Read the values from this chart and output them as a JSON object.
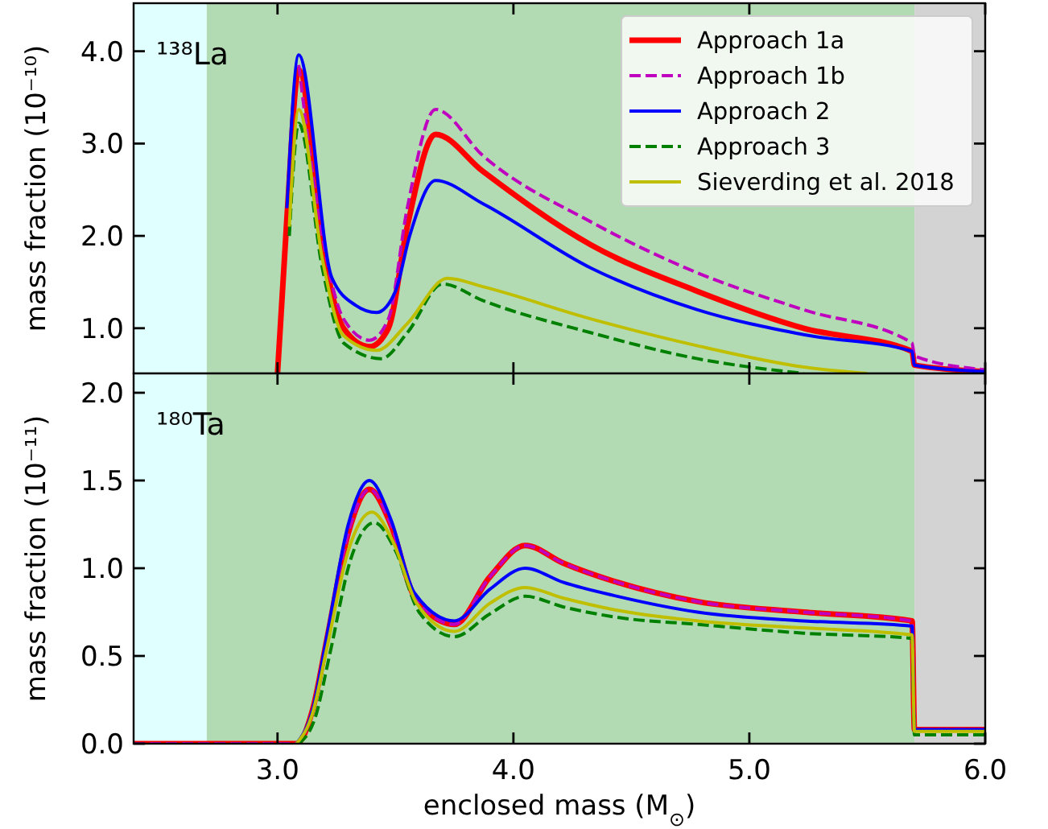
{
  "chart_data": [
    {
      "type": "line",
      "ylabel": "mass fraction (10⁻¹⁰)",
      "annotations": [
        "¹³⁸La"
      ],
      "xlim": [
        2.39,
        6.0
      ],
      "xticks": [
        {
          "value": 3.0,
          "label": null
        },
        {
          "value": 4.0,
          "label": null
        },
        {
          "value": 5.0,
          "label": null
        },
        {
          "value": 6.0,
          "label": null
        }
      ],
      "ylim": [
        0.51,
        4.52
      ],
      "yticks": [
        {
          "value": 1,
          "label": "1.0"
        },
        {
          "value": 2,
          "label": "2.0"
        },
        {
          "value": 3,
          "label": "3.0"
        },
        {
          "value": 4,
          "label": "4.0"
        }
      ],
      "tick_labels": "y",
      "grid": false,
      "legend": "top right",
      "bands": [
        {
          "axis": "x",
          "from": 2.39,
          "to": 2.7,
          "color": "#e0ffff"
        },
        {
          "axis": "x",
          "from": 2.7,
          "to": 5.7,
          "color": "#b3dbb3"
        },
        {
          "axis": "x",
          "from": 5.7,
          "to": 6.0,
          "color": "#d3d3d3"
        }
      ],
      "series": [
        {
          "name": "Approach 1a",
          "color": "#ff0000",
          "line_style": "solid",
          "x": [
            3.0,
            3.04,
            3.09,
            3.19,
            3.28,
            3.39,
            3.47,
            3.55,
            3.67,
            3.87,
            4.33,
            4.78,
            5.23,
            5.69,
            5.7,
            6.0
          ],
          "values": [
            0.51,
            2.2,
            3.8,
            1.9,
            1.0,
            0.8,
            1.0,
            2.1,
            3.1,
            2.7,
            1.9,
            1.4,
            1.0,
            0.75,
            0.6,
            0.53
          ]
        },
        {
          "name": "Approach 1b",
          "color": "#bf00bf",
          "line_style": "dashed",
          "x": [
            3.09,
            3.19,
            3.28,
            3.39,
            3.47,
            3.55,
            3.67,
            3.87,
            4.33,
            4.78,
            5.23,
            5.69,
            5.7,
            6.0
          ],
          "values": [
            3.85,
            2.0,
            1.1,
            0.87,
            1.1,
            2.3,
            3.37,
            2.87,
            2.15,
            1.6,
            1.2,
            0.84,
            0.7,
            0.55
          ]
        },
        {
          "name": "Approach 2",
          "color": "#0000ff",
          "line_style": "solid",
          "x": [
            3.04,
            3.09,
            3.23,
            3.33,
            3.42,
            3.5,
            3.56,
            3.67,
            3.87,
            4.33,
            4.78,
            5.23,
            5.69,
            5.7,
            6.0
          ],
          "values": [
            2.3,
            3.96,
            1.55,
            1.25,
            1.17,
            1.4,
            2.0,
            2.6,
            2.35,
            1.65,
            1.2,
            0.93,
            0.75,
            0.6,
            0.53
          ]
        },
        {
          "name": "Approach 3",
          "color": "#008000",
          "line_style": "dashed",
          "x": [
            3.05,
            3.09,
            3.19,
            3.28,
            3.44,
            3.55,
            3.7,
            3.87,
            4.33,
            4.78,
            5.23
          ],
          "values": [
            2.0,
            3.22,
            1.65,
            0.84,
            0.67,
            0.95,
            1.48,
            1.3,
            0.95,
            0.67,
            0.51
          ]
        },
        {
          "name": "Sieverding et al. 2018",
          "color": "#bfbf00",
          "line_style": "solid",
          "x": [
            3.05,
            3.09,
            3.19,
            3.28,
            3.42,
            3.55,
            3.72,
            3.87,
            4.33,
            4.78,
            5.23,
            5.5
          ],
          "values": [
            2.1,
            3.37,
            1.75,
            0.92,
            0.76,
            1.05,
            1.54,
            1.45,
            1.1,
            0.81,
            0.58,
            0.51
          ]
        }
      ]
    },
    {
      "type": "line",
      "ylabel": "mass fraction (10⁻¹¹)",
      "xlabel": "enclosed mass (M$_{⊙}$)",
      "annotations": [
        "¹⁸⁰Ta"
      ],
      "xlim": [
        2.39,
        6.0
      ],
      "xticks": [
        {
          "value": 3.0,
          "label": "3.0"
        },
        {
          "value": 4.0,
          "label": "4.0"
        },
        {
          "value": 5.0,
          "label": "5.0"
        },
        {
          "value": 6.0,
          "label": "6.0"
        }
      ],
      "ylim": [
        0,
        2.11
      ],
      "yticks": [
        {
          "value": 0,
          "label": "0.0"
        },
        0.5,
        {
          "value": 1,
          "label": "1.0"
        },
        1.5,
        {
          "value": 2,
          "label": "2.0"
        }
      ],
      "grid": false,
      "legend": false,
      "bands": [
        {
          "axis": "x",
          "from": 2.39,
          "to": 2.7,
          "color": "#e0ffff"
        },
        {
          "axis": "x",
          "from": 2.7,
          "to": 5.7,
          "color": "#b3dbb3"
        },
        {
          "axis": "x",
          "from": 5.7,
          "to": 6.0,
          "color": "#d3d3d3"
        }
      ],
      "series": [
        {
          "color": "#ff0000",
          "line_style": "solid",
          "x": [
            2.39,
            3.08,
            3.15,
            3.21,
            3.3,
            3.39,
            3.48,
            3.58,
            3.75,
            3.9,
            4.05,
            4.21,
            4.44,
            4.78,
            5.23,
            5.69,
            5.7,
            6.0
          ],
          "values": [
            0,
            0,
            0.2,
            0.6,
            1.2,
            1.45,
            1.25,
            0.84,
            0.68,
            0.95,
            1.13,
            1.03,
            0.92,
            0.81,
            0.75,
            0.7,
            0.08,
            0.08
          ]
        },
        {
          "color": "#bf00bf",
          "line_style": "dashed",
          "x": [
            2.39,
            3.08,
            3.15,
            3.21,
            3.3,
            3.39,
            3.48,
            3.58,
            3.75,
            3.9,
            4.05,
            4.21,
            4.44,
            4.78,
            5.23,
            5.69,
            5.7,
            6.0
          ],
          "values": [
            0,
            0,
            0.2,
            0.6,
            1.2,
            1.45,
            1.25,
            0.84,
            0.68,
            0.95,
            1.13,
            1.03,
            0.92,
            0.81,
            0.75,
            0.7,
            0.08,
            0.08
          ]
        },
        {
          "color": "#0000ff",
          "line_style": "solid",
          "x": [
            3.08,
            3.15,
            3.21,
            3.3,
            3.39,
            3.48,
            3.58,
            3.75,
            3.9,
            4.05,
            4.21,
            4.44,
            4.78,
            5.23,
            5.69,
            5.7,
            6.0
          ],
          "values": [
            0,
            0.2,
            0.62,
            1.25,
            1.5,
            1.28,
            0.86,
            0.7,
            0.88,
            1.0,
            0.92,
            0.84,
            0.75,
            0.7,
            0.67,
            0.08,
            0.08
          ]
        },
        {
          "color": "#008000",
          "line_style": "dashed",
          "x": [
            3.09,
            3.16,
            3.22,
            3.31,
            3.41,
            3.5,
            3.6,
            3.75,
            3.9,
            4.05,
            4.21,
            4.44,
            4.78,
            5.23,
            5.69,
            5.7,
            6.0
          ],
          "values": [
            0,
            0.15,
            0.5,
            1.05,
            1.26,
            1.1,
            0.75,
            0.61,
            0.74,
            0.84,
            0.78,
            0.72,
            0.68,
            0.63,
            0.6,
            0.05,
            0.05
          ]
        },
        {
          "color": "#bfbf00",
          "line_style": "solid",
          "x": [
            3.08,
            3.15,
            3.21,
            3.3,
            3.4,
            3.49,
            3.59,
            3.75,
            3.9,
            4.05,
            4.21,
            4.44,
            4.78,
            5.23,
            5.69,
            5.7,
            6.0
          ],
          "values": [
            0,
            0.18,
            0.55,
            1.1,
            1.32,
            1.15,
            0.8,
            0.64,
            0.8,
            0.89,
            0.83,
            0.76,
            0.7,
            0.66,
            0.62,
            0.07,
            0.07
          ]
        }
      ]
    }
  ]
}
